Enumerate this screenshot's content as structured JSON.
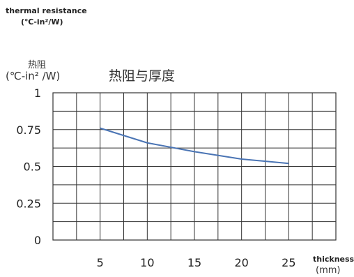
{
  "labels": {
    "ylabel_en_line1": "thermal resistance",
    "ylabel_en_line2": "(℃-in²/W)",
    "ylabel_cn_line1": "热阻",
    "ylabel_cn_line2": "(℃-in² /W)",
    "xlabel_en": "thickness",
    "xlabel_unit": "(mm)"
  },
  "colors": {
    "line": "#4a74b4",
    "grid": "#333333"
  },
  "chart_data": {
    "type": "line",
    "title": "热阻与厚度",
    "xlabel": "thickness (mm)",
    "ylabel": "thermal resistance (℃-in²/W)",
    "x": [
      5,
      10,
      15,
      20,
      25
    ],
    "series": [
      {
        "values": [
          0.76,
          0.66,
          0.6,
          0.55,
          0.52
        ]
      }
    ],
    "xlim": [
      0,
      30
    ],
    "ylim": [
      0,
      1
    ],
    "x_ticks": [
      5,
      10,
      15,
      20,
      25
    ],
    "y_ticks": [
      0,
      0.25,
      0.5,
      0.75,
      1
    ],
    "y_tick_labels": [
      "0",
      "0.25",
      "0.5",
      "0.75",
      "1"
    ],
    "grid": true,
    "legend": "none"
  }
}
